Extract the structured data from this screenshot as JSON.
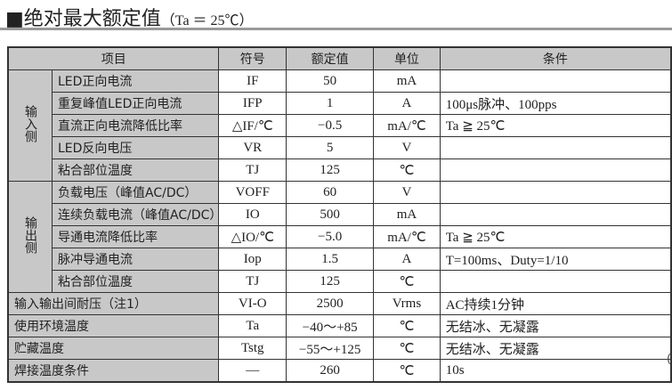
{
  "title": {
    "main": "■绝对最大额定值",
    "sub": "（Ta ＝ 25℃）"
  },
  "header": {
    "item": "项目",
    "symbol": "符号",
    "value": "额定值",
    "unit": "单位",
    "condition": "条件"
  },
  "groups": {
    "input": "输入侧",
    "output": "输出侧"
  },
  "rows": [
    {
      "item": "LED正向电流",
      "symbol": "IF",
      "value": "50",
      "unit": "mA",
      "condition": ""
    },
    {
      "item": "重复峰值LED正向电流",
      "symbol": "IFP",
      "value": "1",
      "unit": "A",
      "condition": "100μs脉冲、100pps"
    },
    {
      "item": "直流正向电流降低比率",
      "symbol": "△IF/℃",
      "value": "−0.5",
      "unit": "mA/℃",
      "condition": "Ta ≧ 25℃"
    },
    {
      "item": "LED反向电压",
      "symbol": "VR",
      "value": "5",
      "unit": "V",
      "condition": ""
    },
    {
      "item": "粘合部位温度",
      "symbol": "TJ",
      "value": "125",
      "unit": "℃",
      "condition": ""
    },
    {
      "item": "负载电压（峰值AC/DC）",
      "symbol": "VOFF",
      "value": "60",
      "unit": "V",
      "condition": ""
    },
    {
      "item": "连续负载电流（峰值AC/DC）",
      "symbol": "IO",
      "value": "500",
      "unit": "mA",
      "condition": ""
    },
    {
      "item": "导通电流降低比率",
      "symbol": "△IO/℃",
      "value": "−5.0",
      "unit": "mA/℃",
      "condition": "Ta ≧ 25℃"
    },
    {
      "item": "脉冲导通电流",
      "symbol": "Iop",
      "value": "1.5",
      "unit": "A",
      "condition": "T=100ms、Duty=1/10"
    },
    {
      "item": "粘合部位温度",
      "symbol": "TJ",
      "value": "125",
      "unit": "℃",
      "condition": ""
    },
    {
      "item": "输入输出间耐压（注1）",
      "symbol": "VI-O",
      "value": "2500",
      "unit": "Vrms",
      "condition": "AC持续1分钟"
    },
    {
      "item": "使用环境温度",
      "symbol": "Ta",
      "value": "−40～+85",
      "unit": "℃",
      "condition": "无结冰、无凝露"
    },
    {
      "item": "贮藏温度",
      "symbol": "Tstg",
      "value": "−55～+125",
      "unit": "℃",
      "condition": "无结冰、无凝露"
    },
    {
      "item": "焊接温度条件",
      "symbol": "—",
      "value": "260",
      "unit": "℃",
      "condition": "10s"
    }
  ],
  "edge_text": "(",
  "colors": {
    "header_bg": "#c8c8c8",
    "border": "#333333",
    "rule": "#9a9a9a"
  }
}
